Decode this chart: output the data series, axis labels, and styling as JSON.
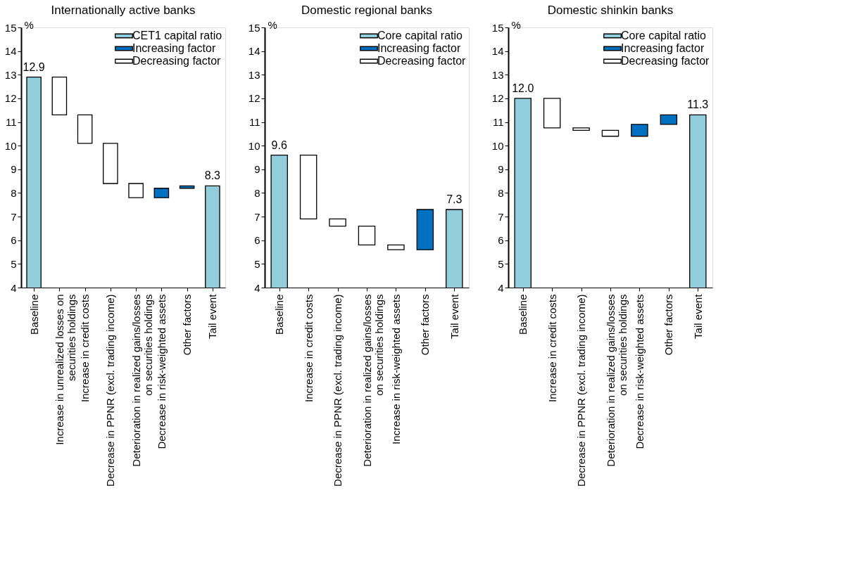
{
  "chart_data": [
    {
      "type": "bar",
      "title": "Internationally active banks",
      "ylabel": "%",
      "ylim": [
        4,
        15
      ],
      "yticks": [
        4,
        5,
        6,
        7,
        8,
        9,
        10,
        11,
        12,
        13,
        14,
        15
      ],
      "grid": false,
      "legend": "top right",
      "categories": [
        "Baseline",
        "Increase in unrealized losses on securities holdings",
        "Increase in credit costs",
        "Decrease in PPNR (excl. trading income)",
        "Deterioration in realized gains/losses on securities holdings",
        "Decrease in risk-weighted assets",
        "Other factors",
        "Tail event"
      ],
      "series": [
        {
          "name": "CET1 capital ratio",
          "color": "#92cddc",
          "values": [
            12.9,
            null,
            null,
            null,
            null,
            null,
            null,
            8.3
          ],
          "value_labels": [
            "12.9",
            null,
            null,
            null,
            null,
            null,
            null,
            "8.3"
          ]
        },
        {
          "name": "Increasing factor",
          "color": "#0070c0",
          "values": [
            null,
            null,
            null,
            null,
            null,
            0.4,
            0.1,
            null
          ],
          "base": [
            null,
            null,
            null,
            null,
            null,
            7.8,
            8.2,
            null
          ]
        },
        {
          "name": "Decreasing factor",
          "color": "#ffffff",
          "values": [
            null,
            -1.6,
            -1.2,
            -1.7,
            -0.6,
            null,
            null,
            null
          ],
          "base": [
            null,
            12.9,
            11.3,
            10.1,
            8.4,
            null,
            null,
            null
          ]
        }
      ]
    },
    {
      "type": "bar",
      "title": "Domestic regional banks",
      "ylabel": "%",
      "ylim": [
        4,
        15
      ],
      "yticks": [
        4,
        5,
        6,
        7,
        8,
        9,
        10,
        11,
        12,
        13,
        14,
        15
      ],
      "grid": false,
      "legend": "top right",
      "categories": [
        "Baseline",
        "Increase in credit costs",
        "Decrease in PPNR (excl. trading income)",
        "Deterioration in realized gains/losses on securities holdings",
        "Increase in risk-weighted assets",
        "Other factors",
        "Tail event"
      ],
      "series": [
        {
          "name": "Core capital ratio",
          "color": "#92cddc",
          "values": [
            9.6,
            null,
            null,
            null,
            null,
            null,
            7.3
          ],
          "value_labels": [
            "9.6",
            null,
            null,
            null,
            null,
            null,
            "7.3"
          ]
        },
        {
          "name": "Increasing factor",
          "color": "#0070c0",
          "values": [
            null,
            null,
            null,
            null,
            null,
            1.7,
            null
          ],
          "base": [
            null,
            null,
            null,
            null,
            null,
            5.6,
            null
          ]
        },
        {
          "name": "Decreasing factor",
          "color": "#ffffff",
          "values": [
            null,
            -2.7,
            -0.3,
            -0.8,
            -0.2,
            null,
            null
          ],
          "base": [
            null,
            9.6,
            6.9,
            6.6,
            5.8,
            null,
            null
          ]
        }
      ]
    },
    {
      "type": "bar",
      "title": "Domestic shinkin banks",
      "ylabel": "%",
      "ylim": [
        4,
        15
      ],
      "yticks": [
        4,
        5,
        6,
        7,
        8,
        9,
        10,
        11,
        12,
        13,
        14,
        15
      ],
      "grid": false,
      "legend": "top right",
      "categories": [
        "Baseline",
        "Increase in credit costs",
        "Decrease in PPNR (excl. trading income)",
        "Deterioration in realized gains/losses on securities holdings",
        "Decrease in risk-weighted assets",
        "Other factors",
        "Tail event"
      ],
      "series": [
        {
          "name": "Core capital ratio",
          "color": "#92cddc",
          "values": [
            12.0,
            null,
            null,
            null,
            null,
            null,
            11.3
          ],
          "value_labels": [
            "12.0",
            null,
            null,
            null,
            null,
            null,
            "11.3"
          ]
        },
        {
          "name": "Increasing factor",
          "color": "#0070c0",
          "values": [
            null,
            null,
            null,
            null,
            0.5,
            0.4,
            null
          ],
          "base": [
            null,
            null,
            null,
            null,
            10.4,
            10.9,
            null
          ]
        },
        {
          "name": "Decreasing factor",
          "color": "#ffffff",
          "values": [
            null,
            -1.25,
            -0.1,
            -0.25,
            null,
            null,
            null
          ],
          "base": [
            null,
            12.0,
            10.75,
            10.65,
            null,
            null,
            null
          ]
        }
      ]
    }
  ]
}
